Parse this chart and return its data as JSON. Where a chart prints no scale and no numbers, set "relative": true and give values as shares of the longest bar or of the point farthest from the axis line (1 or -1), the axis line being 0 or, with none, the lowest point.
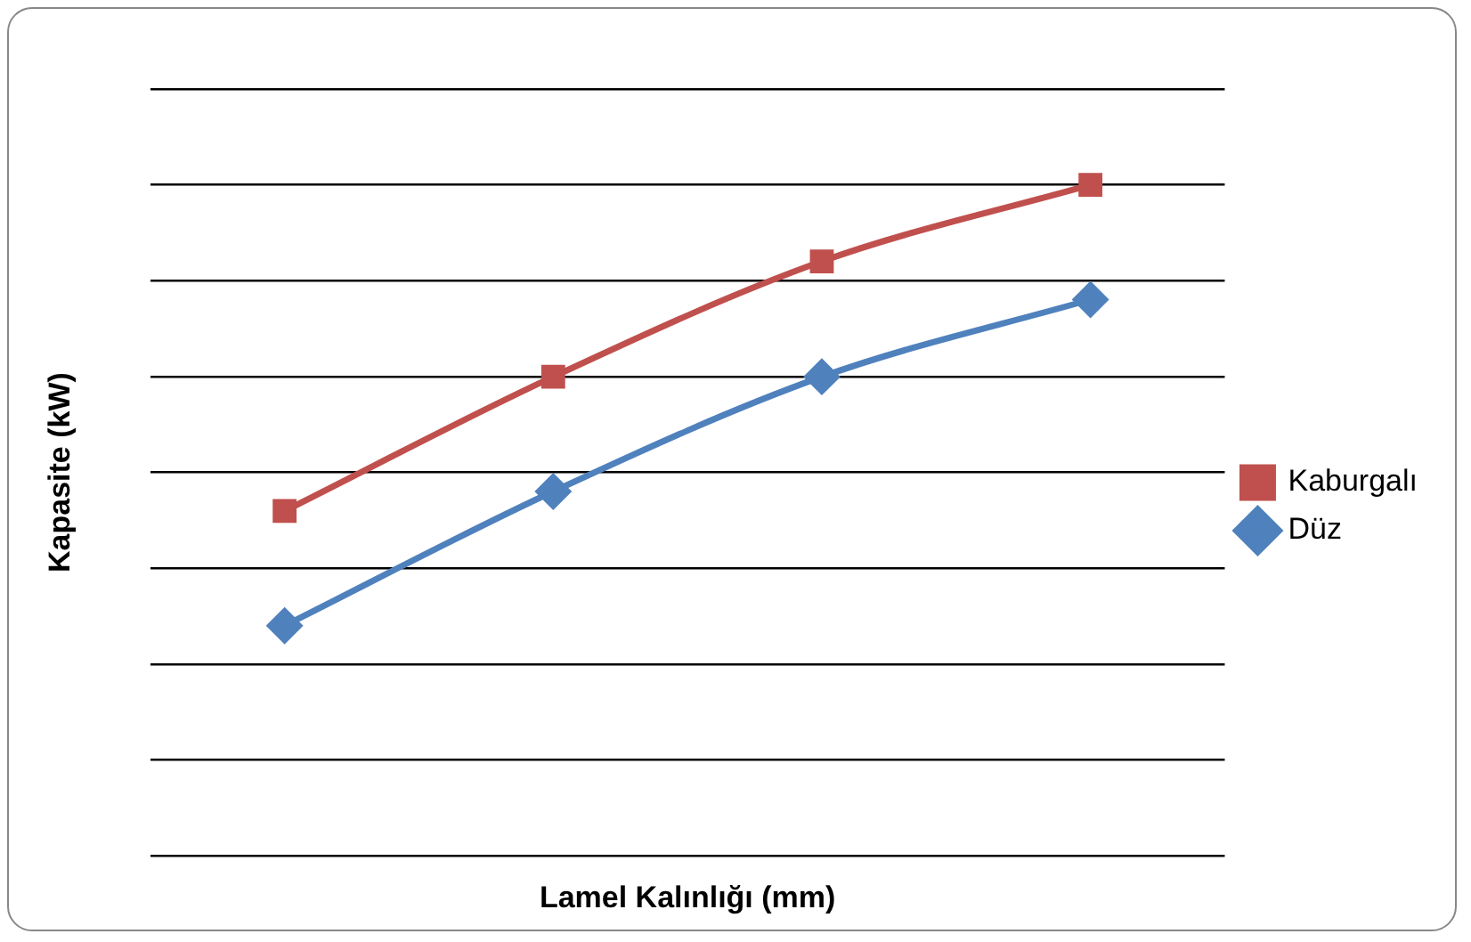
{
  "chart_data": {
    "type": "line",
    "relative": true,
    "xlabel": "Lamel Kalınlığı (mm)",
    "ylabel": "Kapasite (kW)",
    "categories": [
      null,
      null,
      null,
      null
    ],
    "grid": "y",
    "legend": "right",
    "line_style": "solid",
    "series": [
      {
        "name": "Kaburgalı",
        "color": "#c0504d",
        "marker": "square",
        "values": [
          0.514,
          0.714,
          0.886,
          1
        ]
      },
      {
        "name": "Düz",
        "color": "#4f81bd",
        "marker": "diamond",
        "values": [
          0.343,
          0.543,
          0.714,
          0.829
        ]
      }
    ]
  }
}
